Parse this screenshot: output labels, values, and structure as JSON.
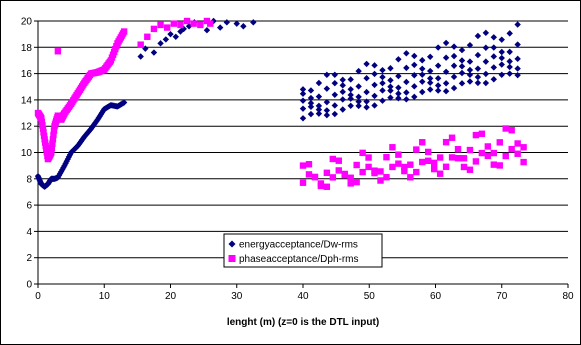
{
  "chart_data": {
    "type": "scatter",
    "xlabel": "lenght (m) (z=0 is the DTL input)",
    "ylabel": "",
    "xlim": [
      0,
      80
    ],
    "ylim": [
      0,
      20
    ],
    "x_ticks": [
      "0",
      "10",
      "20",
      "30",
      "40",
      "50",
      "60",
      "70",
      "80"
    ],
    "y_ticks": [
      "0",
      "2",
      "4",
      "6",
      "8",
      "10",
      "12",
      "14",
      "16",
      "18",
      "20"
    ],
    "grid": "horizontal",
    "legend_position": "bottom-center",
    "series": [
      {
        "name": "energyacceptance/Dw-rms",
        "color": "#000080",
        "marker": "diamond",
        "segments": [
          {
            "kind": "curve",
            "x": [
              0,
              0.5,
              1,
              1.5,
              2,
              2.5,
              3,
              4,
              5,
              6,
              7,
              8,
              9,
              10,
              11,
              12,
              13
            ],
            "y": [
              8.2,
              7.6,
              7.4,
              7.6,
              8.0,
              8.0,
              8.1,
              9.0,
              10.0,
              10.5,
              11.2,
              11.8,
              12.5,
              13.3,
              13.6,
              13.5,
              13.8
            ]
          },
          {
            "kind": "scatter",
            "x": [
              15.5,
              16.2,
              17.5,
              18.5,
              19.3,
              20.0,
              20.8,
              21.5,
              22.0,
              22.8,
              23.6,
              24.5,
              25.5,
              26.5,
              27.5,
              28.5,
              30.0,
              31.0,
              32.5
            ],
            "y": [
              17.3,
              17.9,
              17.6,
              18.3,
              18.6,
              19.0,
              18.8,
              19.2,
              19.4,
              19.6,
              19.9,
              19.7,
              19.3,
              20.0,
              19.5,
              19.9,
              19.8,
              19.6,
              19.9
            ]
          },
          {
            "kind": "bands",
            "x_start": 40,
            "x_end": 73.5,
            "step": 1.2,
            "bands": [
              {
                "y0": 12.6,
                "y1": 16.1,
                "amp": 0.2
              },
              {
                "y0": 13.1,
                "y1": 16.8,
                "amp": 0.3
              },
              {
                "y0": 13.6,
                "y1": 17.5,
                "amp": 0.35
              },
              {
                "y0": 14.3,
                "y1": 18.3,
                "amp": 0.4
              },
              {
                "y0": 15.0,
                "y1": 19.5,
                "amp": 0.45
              }
            ]
          }
        ]
      },
      {
        "name": "phaseacceptance/Dph-rms",
        "color": "#ff00ff",
        "marker": "square",
        "segments": [
          {
            "kind": "curve",
            "x": [
              0,
              0.5,
              1,
              1.5,
              2,
              2.5,
              3,
              3.5,
              4,
              5,
              6,
              7,
              8,
              9,
              10,
              11,
              12,
              13
            ],
            "y": [
              13.0,
              12.6,
              11.0,
              9.5,
              10.0,
              12.0,
              12.8,
              12.5,
              13.0,
              13.7,
              14.5,
              15.3,
              16.0,
              16.1,
              16.3,
              17.0,
              18.3,
              19.2
            ]
          },
          {
            "kind": "scatter",
            "x": [
              3,
              15.5,
              16.5,
              17.5,
              18.5,
              19.5,
              20.5,
              21.5,
              22.5,
              23.5,
              24.5,
              25.5,
              26.0
            ],
            "y": [
              17.7,
              18.2,
              18.8,
              19.4,
              19.7,
              19.5,
              19.8,
              19.7,
              20.0,
              19.8,
              19.7,
              20.0,
              19.8
            ]
          },
          {
            "kind": "bands",
            "x_start": 40,
            "x_end": 73.8,
            "step": 0.9,
            "bands": [
              {
                "y0": 7.7,
                "y1": 9.8,
                "amp": 0.6
              },
              {
                "y0": 8.3,
                "y1": 11.3,
                "amp": 0.9
              }
            ]
          }
        ]
      }
    ]
  }
}
